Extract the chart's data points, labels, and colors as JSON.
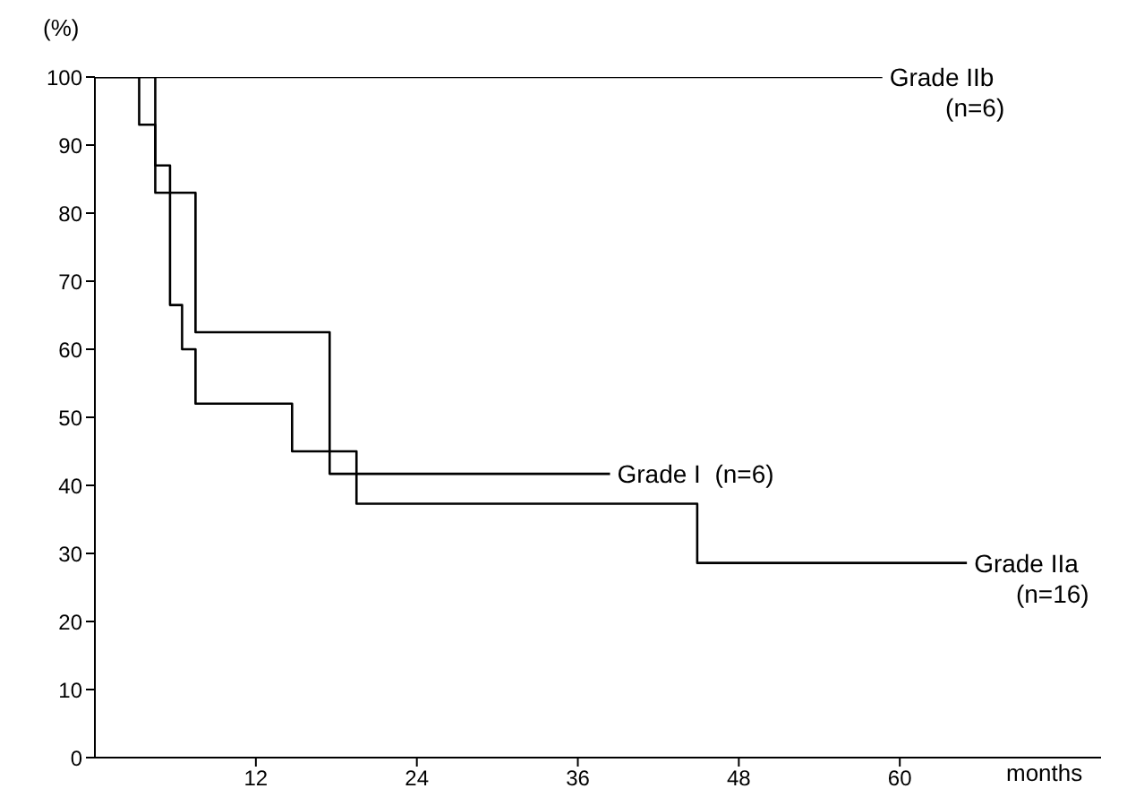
{
  "chart_data": {
    "type": "step",
    "xlabel": "months",
    "ylabel": "(%)",
    "xlim": [
      0,
      75
    ],
    "xticks": [
      12,
      24,
      36,
      48,
      60
    ],
    "ylim": [
      0,
      100
    ],
    "yticks": [
      0,
      10,
      20,
      30,
      40,
      50,
      60,
      70,
      80,
      90,
      100
    ],
    "marker": "none",
    "line_style": "solid",
    "series": [
      {
        "name": "Grade IIb\n(n=6)",
        "color": "#000000",
        "x": [
          0,
          58.7
        ],
        "values": [
          100,
          100
        ]
      },
      {
        "name": "Grade I  (n=6)",
        "color": "#000000",
        "x": [
          0,
          4.5,
          7.5,
          17.5,
          38.4
        ],
        "values": [
          100,
          83,
          62.5,
          41.7,
          41.7
        ]
      },
      {
        "name": "Grade IIa\n(n=16)",
        "color": "#000000",
        "x": [
          0,
          3.3,
          4.5,
          5.6,
          6.5,
          7.5,
          14.7,
          19.5,
          44.9,
          65
        ],
        "values": [
          100,
          93,
          87,
          66.5,
          60,
          52,
          45,
          37.3,
          28.6,
          28.6
        ]
      }
    ]
  }
}
